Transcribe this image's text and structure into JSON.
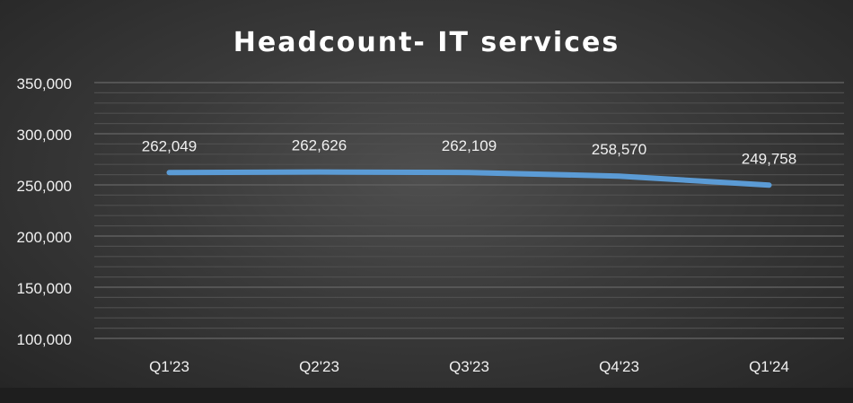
{
  "chart_data": {
    "type": "line",
    "title": "Headcount- IT services",
    "categories": [
      "Q1'23",
      "Q2'23",
      "Q3'23",
      "Q4'23",
      "Q1'24"
    ],
    "values": [
      262049,
      262626,
      262109,
      258570,
      249758
    ],
    "data_labels": [
      "262,049",
      "262,626",
      "262,109",
      "258,570",
      "249,758"
    ],
    "ylim": [
      100000,
      350000
    ],
    "y_ticks": [
      "100,000",
      "150,000",
      "200,000",
      "250,000",
      "300,000",
      "350,000"
    ],
    "grid": true,
    "legend": "none",
    "line_color": "#5b9bd5"
  }
}
